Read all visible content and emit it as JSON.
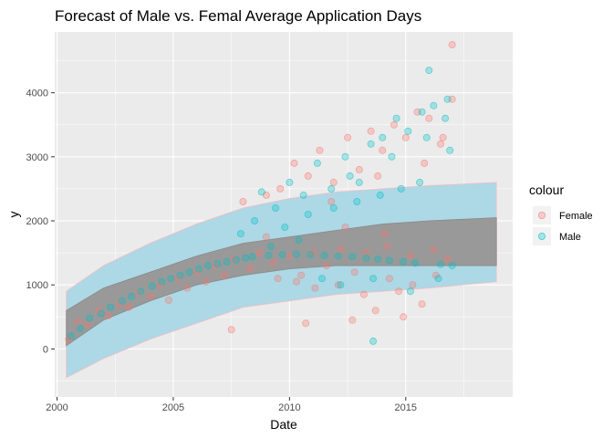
{
  "chart_data": {
    "type": "scatter",
    "title": "Forecast of Male vs. Femal Average Application Days",
    "xlabel": "Date",
    "ylabel": "y",
    "xlim": [
      1999.9,
      2019.6
    ],
    "ylim": [
      -750,
      4950
    ],
    "x_ticks": [
      2000,
      2005,
      2010,
      2015
    ],
    "y_ticks": [
      0,
      1000,
      2000,
      3000,
      4000
    ],
    "grid": true,
    "background": "#ebebeb",
    "legend": {
      "title": "colour",
      "position": "right",
      "entries": [
        {
          "label": "Female",
          "color": "#f8766d"
        },
        {
          "label": "Male",
          "color": "#00bfc4"
        }
      ]
    },
    "forecast": {
      "x_start": 2000.4,
      "x_end": 2018.9,
      "mean_color": "#999999",
      "interval_color": "#add8e6",
      "mean_band": [
        {
          "x": 2000.4,
          "lower": 50,
          "upper": 600
        },
        {
          "x": 2002.0,
          "lower": 450,
          "upper": 950
        },
        {
          "x": 2004.0,
          "lower": 750,
          "upper": 1200
        },
        {
          "x": 2006.0,
          "lower": 1000,
          "upper": 1450
        },
        {
          "x": 2008.0,
          "lower": 1150,
          "upper": 1650
        },
        {
          "x": 2010.0,
          "lower": 1250,
          "upper": 1750
        },
        {
          "x": 2012.0,
          "lower": 1300,
          "upper": 1850
        },
        {
          "x": 2014.0,
          "lower": 1300,
          "upper": 1950
        },
        {
          "x": 2016.0,
          "lower": 1300,
          "upper": 2000
        },
        {
          "x": 2018.9,
          "lower": 1300,
          "upper": 2050
        }
      ],
      "interval": [
        {
          "x": 2000.4,
          "lower": -450,
          "upper": 900
        },
        {
          "x": 2002.0,
          "lower": -150,
          "upper": 1300
        },
        {
          "x": 2004.0,
          "lower": 150,
          "upper": 1650
        },
        {
          "x": 2006.0,
          "lower": 400,
          "upper": 1950
        },
        {
          "x": 2008.0,
          "lower": 650,
          "upper": 2200
        },
        {
          "x": 2010.0,
          "lower": 750,
          "upper": 2350
        },
        {
          "x": 2012.0,
          "lower": 850,
          "upper": 2450
        },
        {
          "x": 2014.0,
          "lower": 900,
          "upper": 2500
        },
        {
          "x": 2016.0,
          "lower": 950,
          "upper": 2550
        },
        {
          "x": 2018.9,
          "lower": 1050,
          "upper": 2600
        }
      ]
    },
    "series": [
      {
        "name": "Female",
        "color": "#f8766d",
        "points": [
          [
            2000.5,
            150
          ],
          [
            2000.9,
            420
          ],
          [
            2001.3,
            380
          ],
          [
            2001.8,
            600
          ],
          [
            2002.2,
            520
          ],
          [
            2002.7,
            700
          ],
          [
            2003.1,
            650
          ],
          [
            2003.5,
            880
          ],
          [
            2004.0,
            820
          ],
          [
            2004.4,
            1000
          ],
          [
            2004.8,
            760
          ],
          [
            2005.2,
            1100
          ],
          [
            2005.6,
            950
          ],
          [
            2006.0,
            1200
          ],
          [
            2006.4,
            1050
          ],
          [
            2006.8,
            1300
          ],
          [
            2007.2,
            1150
          ],
          [
            2007.6,
            1400
          ],
          [
            2007.5,
            300
          ],
          [
            2008.0,
            2300
          ],
          [
            2008.3,
            1250
          ],
          [
            2008.7,
            1500
          ],
          [
            2009.0,
            2400
          ],
          [
            2009.3,
            1350
          ],
          [
            2009.6,
            2500
          ],
          [
            2010.0,
            1450
          ],
          [
            2010.2,
            2900
          ],
          [
            2010.5,
            1150
          ],
          [
            2010.8,
            2700
          ],
          [
            2011.0,
            1500
          ],
          [
            2011.3,
            3100
          ],
          [
            2011.6,
            1300
          ],
          [
            2011.9,
            2600
          ],
          [
            2012.2,
            1550
          ],
          [
            2012.5,
            3300
          ],
          [
            2012.8,
            1200
          ],
          [
            2013.0,
            2800
          ],
          [
            2013.3,
            1500
          ],
          [
            2013.5,
            3400
          ],
          [
            2013.7,
            600
          ],
          [
            2014.0,
            3100
          ],
          [
            2014.2,
            1600
          ],
          [
            2014.5,
            3500
          ],
          [
            2014.7,
            900
          ],
          [
            2015.0,
            3300
          ],
          [
            2015.2,
            1450
          ],
          [
            2015.5,
            3700
          ],
          [
            2015.7,
            700
          ],
          [
            2016.0,
            3600
          ],
          [
            2016.2,
            1550
          ],
          [
            2016.5,
            3200
          ],
          [
            2016.8,
            1400
          ],
          [
            2017.0,
            4750
          ],
          [
            2017.0,
            3900
          ],
          [
            2009.5,
            1100
          ],
          [
            2010.3,
            1050
          ],
          [
            2011.1,
            950
          ],
          [
            2012.1,
            1000
          ],
          [
            2013.2,
            850
          ],
          [
            2014.3,
            1100
          ],
          [
            2015.3,
            1000
          ],
          [
            2016.3,
            1150
          ],
          [
            2010.7,
            400
          ],
          [
            2012.7,
            450
          ],
          [
            2014.9,
            500
          ],
          [
            2011.8,
            2300
          ],
          [
            2013.8,
            2700
          ],
          [
            2015.8,
            2900
          ],
          [
            2009.0,
            1750
          ],
          [
            2012.4,
            1900
          ],
          [
            2016.6,
            3300
          ],
          [
            2014.1,
            1800
          ]
        ]
      },
      {
        "name": "Male",
        "color": "#00bfc4",
        "points": [
          [
            2000.6,
            200
          ],
          [
            2001.0,
            320
          ],
          [
            2001.4,
            480
          ],
          [
            2001.9,
            550
          ],
          [
            2002.3,
            650
          ],
          [
            2002.8,
            750
          ],
          [
            2003.2,
            820
          ],
          [
            2003.6,
            900
          ],
          [
            2004.1,
            980
          ],
          [
            2004.5,
            1050
          ],
          [
            2004.9,
            1100
          ],
          [
            2005.3,
            1150
          ],
          [
            2005.7,
            1200
          ],
          [
            2006.1,
            1250
          ],
          [
            2006.5,
            1300
          ],
          [
            2006.9,
            1330
          ],
          [
            2007.3,
            1360
          ],
          [
            2007.7,
            1390
          ],
          [
            2008.1,
            1420
          ],
          [
            2008.4,
            1440
          ],
          [
            2008.8,
            2450
          ],
          [
            2009.1,
            1460
          ],
          [
            2009.4,
            2200
          ],
          [
            2009.7,
            1470
          ],
          [
            2010.0,
            2600
          ],
          [
            2010.3,
            1480
          ],
          [
            2010.6,
            2400
          ],
          [
            2010.9,
            1470
          ],
          [
            2011.2,
            2900
          ],
          [
            2011.5,
            1460
          ],
          [
            2011.8,
            2500
          ],
          [
            2012.1,
            1450
          ],
          [
            2012.4,
            3000
          ],
          [
            2012.7,
            1440
          ],
          [
            2013.0,
            2600
          ],
          [
            2013.3,
            1420
          ],
          [
            2013.5,
            3200
          ],
          [
            2013.8,
            1400
          ],
          [
            2014.0,
            3300
          ],
          [
            2014.3,
            1380
          ],
          [
            2014.6,
            3600
          ],
          [
            2014.9,
            1360
          ],
          [
            2015.1,
            3400
          ],
          [
            2015.4,
            1340
          ],
          [
            2015.7,
            3700
          ],
          [
            2016.0,
            4350
          ],
          [
            2016.2,
            3800
          ],
          [
            2016.5,
            1320
          ],
          [
            2016.8,
            3900
          ],
          [
            2017.0,
            1300
          ],
          [
            2016.9,
            3100
          ],
          [
            2009.8,
            1900
          ],
          [
            2010.8,
            2100
          ],
          [
            2011.9,
            2200
          ],
          [
            2012.9,
            2300
          ],
          [
            2013.9,
            2400
          ],
          [
            2014.8,
            2500
          ],
          [
            2015.6,
            2600
          ],
          [
            2008.5,
            2000
          ],
          [
            2007.9,
            1800
          ],
          [
            2012.2,
            1000
          ],
          [
            2013.6,
            1100
          ],
          [
            2015.2,
            900
          ],
          [
            2013.6,
            120
          ],
          [
            2016.4,
            1100
          ],
          [
            2011.4,
            1100
          ],
          [
            2014.4,
            3000
          ],
          [
            2015.9,
            3300
          ],
          [
            2012.6,
            2700
          ],
          [
            2010.4,
            1700
          ],
          [
            2016.7,
            3600
          ],
          [
            2009.2,
            1600
          ]
        ]
      }
    ]
  }
}
